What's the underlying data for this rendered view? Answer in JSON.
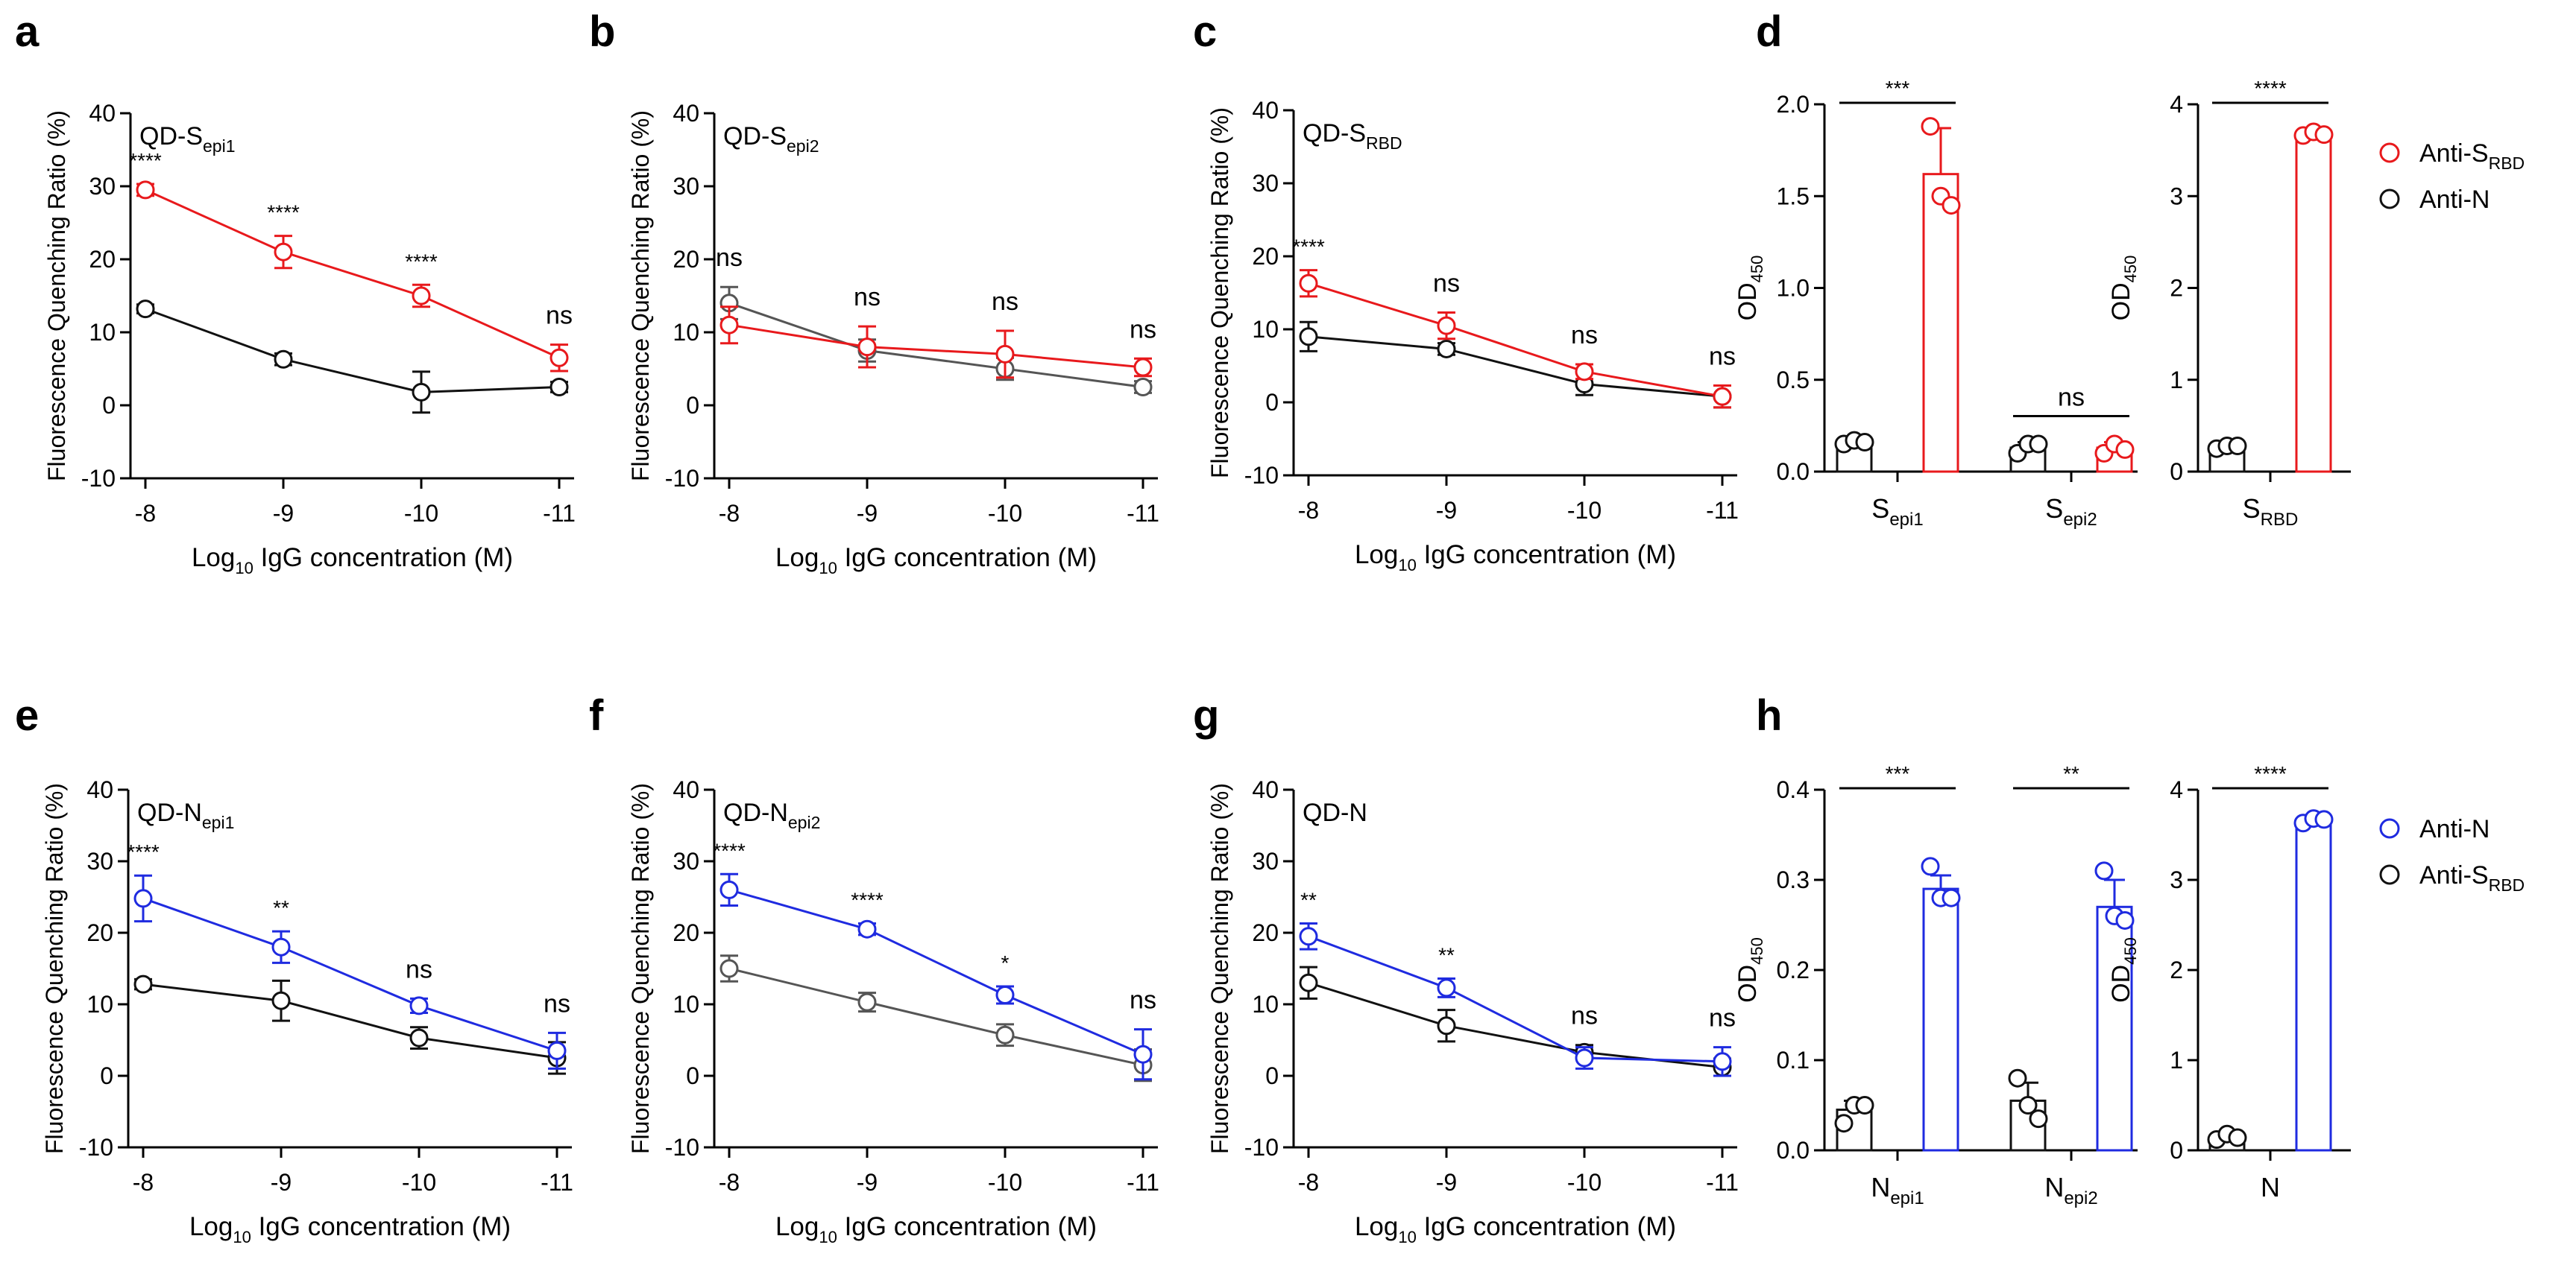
{
  "colors": {
    "red": "#e8191c",
    "blue": "#1f2be0",
    "black": "#111111",
    "gray": "#555555"
  },
  "chart_data": [
    {
      "panel": "a",
      "type": "line",
      "title": "QD-S",
      "title_sub": "epi1",
      "xlabel": "IgG concentration (M)",
      "xlabel_prefix": "Log",
      "xlabel_sub": "10",
      "ylabel": "Fluorescence Quenching Ratio (%)",
      "categories": [
        "-8",
        "-9",
        "-10",
        "-11"
      ],
      "ylim": [
        -10,
        40
      ],
      "yticks": [
        -10,
        0,
        10,
        20,
        30,
        40
      ],
      "series": [
        {
          "name": "Anti-S_RBD",
          "color": "red",
          "values": [
            29.5,
            21,
            15,
            6.5
          ],
          "errors": [
            0.8,
            2.2,
            1.5,
            1.8
          ]
        },
        {
          "name": "Anti-N",
          "color": "black",
          "values": [
            13.2,
            6.3,
            1.8,
            2.5
          ],
          "errors": [
            0.6,
            0.8,
            2.8,
            0.7
          ]
        }
      ],
      "significance": [
        "****",
        "****",
        "****",
        "ns"
      ]
    },
    {
      "panel": "b",
      "type": "line",
      "title": "QD-S",
      "title_sub": "epi2",
      "xlabel": "IgG concentration (M)",
      "xlabel_prefix": "Log",
      "xlabel_sub": "10",
      "ylabel": "Fluorescence Quenching Ratio (%)",
      "categories": [
        "-8",
        "-9",
        "-10",
        "-11"
      ],
      "ylim": [
        -10,
        40
      ],
      "yticks": [
        -10,
        0,
        10,
        20,
        30,
        40
      ],
      "series": [
        {
          "name": "Anti-S_RBD",
          "color": "red",
          "values": [
            11,
            8,
            7,
            5.2
          ],
          "errors": [
            2.5,
            2.8,
            3.2,
            1.2
          ]
        },
        {
          "name": "Anti-N",
          "color": "gray",
          "values": [
            14,
            7.5,
            5,
            2.5
          ],
          "errors": [
            2.2,
            1.5,
            1.5,
            0.8
          ]
        }
      ],
      "significance": [
        "ns",
        "ns",
        "ns",
        "ns"
      ]
    },
    {
      "panel": "c",
      "type": "line",
      "title": "QD-S",
      "title_sub": "RBD",
      "xlabel": "IgG concentration (M)",
      "xlabel_prefix": "Log",
      "xlabel_sub": "10",
      "ylabel": "Fluorescence Quenching Ratio (%)",
      "categories": [
        "-8",
        "-9",
        "-10",
        "-11"
      ],
      "ylim": [
        -10,
        40
      ],
      "yticks": [
        -10,
        0,
        10,
        20,
        30,
        40
      ],
      "series": [
        {
          "name": "Anti-S_RBD",
          "color": "red",
          "values": [
            16.3,
            10.5,
            4.2,
            0.8
          ],
          "errors": [
            1.8,
            1.8,
            1,
            1.5
          ]
        },
        {
          "name": "Anti-N",
          "color": "black",
          "values": [
            9,
            7.3,
            2.5,
            0.8
          ],
          "errors": [
            2,
            0.8,
            1.5,
            1.5
          ]
        }
      ],
      "significance": [
        "****",
        "ns",
        "ns",
        "ns"
      ]
    },
    {
      "panel": "e",
      "type": "line",
      "title": "QD-N",
      "title_sub": "epi1",
      "xlabel": "IgG concentration (M)",
      "xlabel_prefix": "Log",
      "xlabel_sub": "10",
      "ylabel": "Fluorescence Quenching Ratio (%)",
      "categories": [
        "-8",
        "-9",
        "-10",
        "-11"
      ],
      "ylim": [
        -10,
        40
      ],
      "yticks": [
        -10,
        0,
        10,
        20,
        30,
        40
      ],
      "series": [
        {
          "name": "Anti-N",
          "color": "blue",
          "values": [
            24.8,
            18,
            9.8,
            3.5
          ],
          "errors": [
            3.2,
            2.2,
            1,
            2.5
          ]
        },
        {
          "name": "Anti-S_RBD",
          "color": "black",
          "values": [
            12.8,
            10.5,
            5.3,
            2.5
          ],
          "errors": [
            0.7,
            2.8,
            1.5,
            2.2
          ]
        }
      ],
      "significance": [
        "****",
        "**",
        "ns",
        "ns"
      ]
    },
    {
      "panel": "f",
      "type": "line",
      "title": "QD-N",
      "title_sub": "epi2",
      "xlabel": "IgG concentration (M)",
      "xlabel_prefix": "Log",
      "xlabel_sub": "10",
      "ylabel": "Fluorescence Quenching Ratio (%)",
      "categories": [
        "-8",
        "-9",
        "-10",
        "-11"
      ],
      "ylim": [
        -10,
        40
      ],
      "yticks": [
        -10,
        0,
        10,
        20,
        30,
        40
      ],
      "series": [
        {
          "name": "Anti-N",
          "color": "blue",
          "values": [
            26,
            20.5,
            11.3,
            3
          ],
          "errors": [
            2.2,
            0.8,
            1.2,
            3.5
          ]
        },
        {
          "name": "Anti-S_RBD",
          "color": "gray",
          "values": [
            15,
            10.3,
            5.7,
            1.5
          ],
          "errors": [
            1.8,
            1.3,
            1.5,
            2.2
          ]
        }
      ],
      "significance": [
        "****",
        "****",
        "*",
        "ns"
      ]
    },
    {
      "panel": "g",
      "type": "line",
      "title": "QD-N",
      "title_sub": "",
      "xlabel": "IgG concentration (M)",
      "xlabel_prefix": "Log",
      "xlabel_sub": "10",
      "ylabel": "Fluorescence Quenching Ratio (%)",
      "categories": [
        "-8",
        "-9",
        "-10",
        "-11"
      ],
      "ylim": [
        -10,
        40
      ],
      "yticks": [
        -10,
        0,
        10,
        20,
        30,
        40
      ],
      "series": [
        {
          "name": "Anti-N",
          "color": "blue",
          "values": [
            19.5,
            12.3,
            2.5,
            2
          ],
          "errors": [
            1.8,
            1.3,
            1.5,
            2
          ]
        },
        {
          "name": "Anti-S_RBD",
          "color": "black",
          "values": [
            13,
            7,
            3.3,
            1.2
          ],
          "errors": [
            2.2,
            2.2,
            1,
            1.2
          ]
        }
      ],
      "significance": [
        "**",
        "**",
        "ns",
        "ns"
      ]
    },
    {
      "panel": "d",
      "type": "bar",
      "ylabel": "OD",
      "ylabel_sub": "450",
      "ylim": [
        0,
        2.0
      ],
      "yticks": [
        "0.0",
        "0.5",
        "1.0",
        "1.5",
        "2.0"
      ],
      "groups": [
        {
          "label": "S",
          "sub": "epi1",
          "bars": [
            {
              "series": "Anti-N",
              "color": "black",
              "value": 0.16,
              "error": 0.02,
              "points": [
                0.15,
                0.17,
                0.16
              ]
            },
            {
              "series": "Anti-S_RBD",
              "color": "red",
              "value": 1.62,
              "error": 0.25,
              "points": [
                1.88,
                1.5,
                1.45
              ]
            }
          ],
          "significance": "***"
        },
        {
          "label": "S",
          "sub": "epi2",
          "bars": [
            {
              "series": "Anti-N",
              "color": "black",
              "value": 0.13,
              "error": 0.03,
              "points": [
                0.1,
                0.15,
                0.15
              ]
            },
            {
              "series": "Anti-S_RBD",
              "color": "red",
              "value": 0.13,
              "error": 0.03,
              "points": [
                0.1,
                0.15,
                0.12
              ]
            }
          ],
          "significance": "ns"
        }
      ]
    },
    {
      "panel": "d2",
      "type": "bar",
      "ylabel": "OD",
      "ylabel_sub": "450",
      "ylim": [
        0,
        4
      ],
      "yticks": [
        "0",
        "1",
        "2",
        "3",
        "4"
      ],
      "groups": [
        {
          "label": "S",
          "sub": "RBD",
          "bars": [
            {
              "series": "Anti-N",
              "color": "black",
              "value": 0.27,
              "error": 0.05,
              "points": [
                0.25,
                0.28,
                0.28
              ]
            },
            {
              "series": "Anti-S_RBD",
              "color": "red",
              "value": 3.68,
              "error": 0.03,
              "points": [
                3.66,
                3.7,
                3.67
              ]
            }
          ],
          "significance": "****"
        }
      ]
    },
    {
      "panel": "h",
      "type": "bar",
      "ylabel": "OD",
      "ylabel_sub": "450",
      "ylim": [
        0,
        0.4
      ],
      "yticks": [
        "0.0",
        "0.1",
        "0.2",
        "0.3",
        "0.4"
      ],
      "groups": [
        {
          "label": "N",
          "sub": "epi1",
          "bars": [
            {
              "series": "Anti-S_RBD",
              "color": "black",
              "value": 0.045,
              "error": 0.01,
              "points": [
                0.03,
                0.05,
                0.05
              ]
            },
            {
              "series": "Anti-N",
              "color": "blue",
              "value": 0.29,
              "error": 0.015,
              "points": [
                0.315,
                0.28,
                0.28
              ]
            }
          ],
          "significance": "***"
        },
        {
          "label": "N",
          "sub": "epi2",
          "bars": [
            {
              "series": "Anti-S_RBD",
              "color": "black",
              "value": 0.055,
              "error": 0.02,
              "points": [
                0.08,
                0.05,
                0.035
              ]
            },
            {
              "series": "Anti-N",
              "color": "blue",
              "value": 0.27,
              "error": 0.03,
              "points": [
                0.31,
                0.26,
                0.255
              ]
            }
          ],
          "significance": "**"
        }
      ]
    },
    {
      "panel": "h2",
      "type": "bar",
      "ylabel": "OD",
      "ylabel_sub": "450",
      "ylim": [
        0,
        4
      ],
      "yticks": [
        "0",
        "1",
        "2",
        "3",
        "4"
      ],
      "groups": [
        {
          "label": "N",
          "sub": "",
          "bars": [
            {
              "series": "Anti-S_RBD",
              "color": "black",
              "value": 0.15,
              "error": 0.05,
              "points": [
                0.12,
                0.18,
                0.14
              ]
            },
            {
              "series": "Anti-N",
              "color": "blue",
              "value": 3.66,
              "error": 0.03,
              "points": [
                3.63,
                3.68,
                3.67
              ]
            }
          ],
          "significance": "****"
        }
      ]
    }
  ],
  "legends": [
    {
      "panel": "d",
      "items": [
        {
          "label": "Anti-S",
          "sub": "RBD",
          "color": "red"
        },
        {
          "label": "Anti-N",
          "sub": "",
          "color": "black"
        }
      ]
    },
    {
      "panel": "h",
      "items": [
        {
          "label": "Anti-N",
          "sub": "",
          "color": "blue"
        },
        {
          "label": "Anti-S",
          "sub": "RBD",
          "color": "black"
        }
      ]
    }
  ],
  "panel_letters": [
    "a",
    "b",
    "c",
    "d",
    "e",
    "f",
    "g",
    "h"
  ]
}
